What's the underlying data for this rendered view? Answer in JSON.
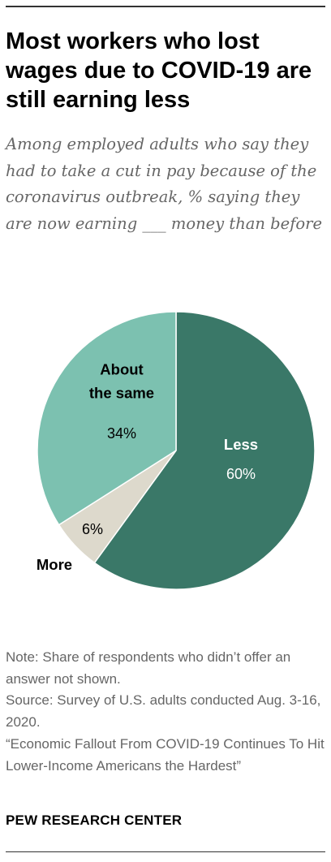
{
  "title": "Most workers who lost wages due to COVID-19 are still earning less",
  "subtitle": "Among employed adults who say they had to take a cut in pay because of the coronavirus outbreak, % saying they are now earning ___ money than before",
  "chart_data": {
    "type": "pie",
    "slices": [
      {
        "label": "Less",
        "value": 60,
        "display": "60%",
        "color": "#3a7868",
        "label_color": "#ffffff"
      },
      {
        "label": "More",
        "value": 6,
        "display": "6%",
        "color": "#ddd9cc",
        "label_color": "#000000"
      },
      {
        "label": "About the same",
        "value": 34,
        "display": "34%",
        "color": "#7cc1b0",
        "label_color": "#000000"
      }
    ]
  },
  "notes": {
    "note": "Note: Share of respondents who didn’t offer an answer not shown.",
    "source": "Source: Survey of U.S. adults conducted Aug. 3-16, 2020.",
    "report": "“Economic Fallout From COVID-19 Continues To Hit Lower-Income Americans the Hardest”"
  },
  "brand": "PEW RESEARCH CENTER"
}
